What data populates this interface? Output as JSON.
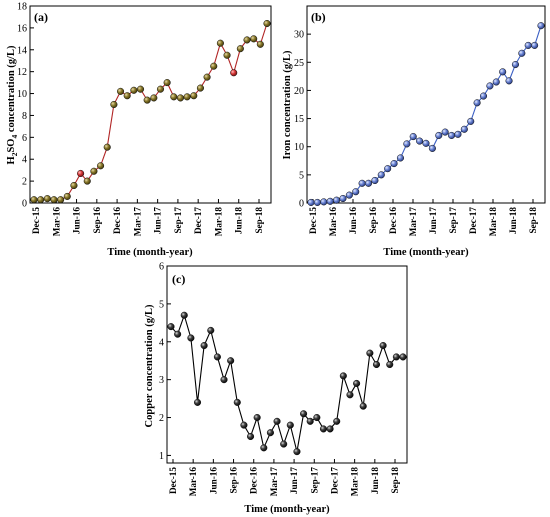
{
  "colors": {
    "a": "#b12525",
    "b": "#3b5fc4",
    "c": "#000000"
  },
  "chart_data": [
    {
      "type": "line",
      "panel_label": "(a)",
      "title": "",
      "xlabel": "Time (month-year)",
      "ylabel_parts": [
        "H",
        "2",
        "SO",
        "4",
        " concentration (g/L)"
      ],
      "x_tick_labels": [
        "Dec-15",
        "Mar-16",
        "Jun-16",
        "Sep-16",
        "Dec-16",
        "Mar-17",
        "Jun-17",
        "Sep-17",
        "Dec-17",
        "Mar-18",
        "Jun-18",
        "Sep-18"
      ],
      "ylim": [
        0,
        18
      ],
      "y_ticks": [
        0,
        2,
        4,
        6,
        8,
        10,
        12,
        14,
        16,
        18
      ],
      "marker": "ball-olive",
      "line_color": "#b12525",
      "values": [
        0.3,
        0.3,
        0.4,
        0.3,
        0.3,
        0.6,
        1.6,
        2.7,
        2.0,
        2.9,
        3.4,
        5.1,
        9.0,
        10.2,
        9.8,
        10.3,
        10.4,
        9.4,
        9.6,
        10.4,
        11.0,
        9.7,
        9.6,
        9.7,
        9.8,
        10.5,
        11.5,
        12.5,
        14.6,
        13.5,
        11.9,
        14.1,
        14.9,
        15.0,
        14.5,
        16.4
      ],
      "highlighted_points": [
        [
          7,
          2.7
        ],
        [
          30,
          11.9
        ]
      ]
    },
    {
      "type": "line",
      "panel_label": "(b)",
      "title": "",
      "xlabel": "Time (month-year)",
      "ylabel": "Iron concentration (g/L)",
      "x_tick_labels": [
        "Dec-15",
        "Mar-16",
        "Jun-16",
        "Sep-16",
        "Dec-16",
        "Mar-17",
        "Jun-17",
        "Sep-17",
        "Dec-17",
        "Mar-18",
        "Jun-18",
        "Sep-18"
      ],
      "ylim": [
        0,
        35
      ],
      "y_ticks": [
        0,
        5,
        10,
        15,
        20,
        25,
        30
      ],
      "marker": "ball-blue",
      "line_color": "#3b5fc4",
      "values": [
        0.1,
        0.1,
        0.2,
        0.3,
        0.5,
        0.8,
        1.4,
        2.0,
        3.5,
        3.5,
        4.0,
        5.0,
        6.1,
        7.0,
        8.0,
        10.5,
        11.8,
        11.0,
        10.6,
        9.7,
        12.0,
        12.6,
        12.0,
        12.2,
        13.1,
        14.5,
        17.8,
        19.0,
        20.8,
        21.5,
        23.3,
        21.7,
        24.6,
        26.6,
        28.0,
        28.0,
        31.5
      ]
    },
    {
      "type": "line",
      "panel_label": "(c)",
      "title": "",
      "xlabel": "Time (month-year)",
      "ylabel": "Copper concentration (g/L)",
      "x_tick_labels": [
        "Dec-15",
        "Mar-16",
        "Jun-16",
        "Sep-16",
        "Dec-16",
        "Mar-17",
        "Jun-17",
        "Sep-17",
        "Dec-17",
        "Mar-18",
        "Jun-18",
        "Sep-18"
      ],
      "ylim": [
        0.8,
        6
      ],
      "y_ticks": [
        1,
        2,
        3,
        4,
        5,
        6
      ],
      "marker": "ball-black",
      "line_color": "#000000",
      "values": [
        4.4,
        4.2,
        4.7,
        4.1,
        2.4,
        3.9,
        4.3,
        3.6,
        3.0,
        3.5,
        2.4,
        1.8,
        1.5,
        2.0,
        1.2,
        1.6,
        1.9,
        1.3,
        1.8,
        1.1,
        2.1,
        1.9,
        2.0,
        1.7,
        1.7,
        1.9,
        3.1,
        2.6,
        2.9,
        2.3,
        3.7,
        3.4,
        3.9,
        3.4,
        3.6,
        3.6
      ]
    }
  ]
}
